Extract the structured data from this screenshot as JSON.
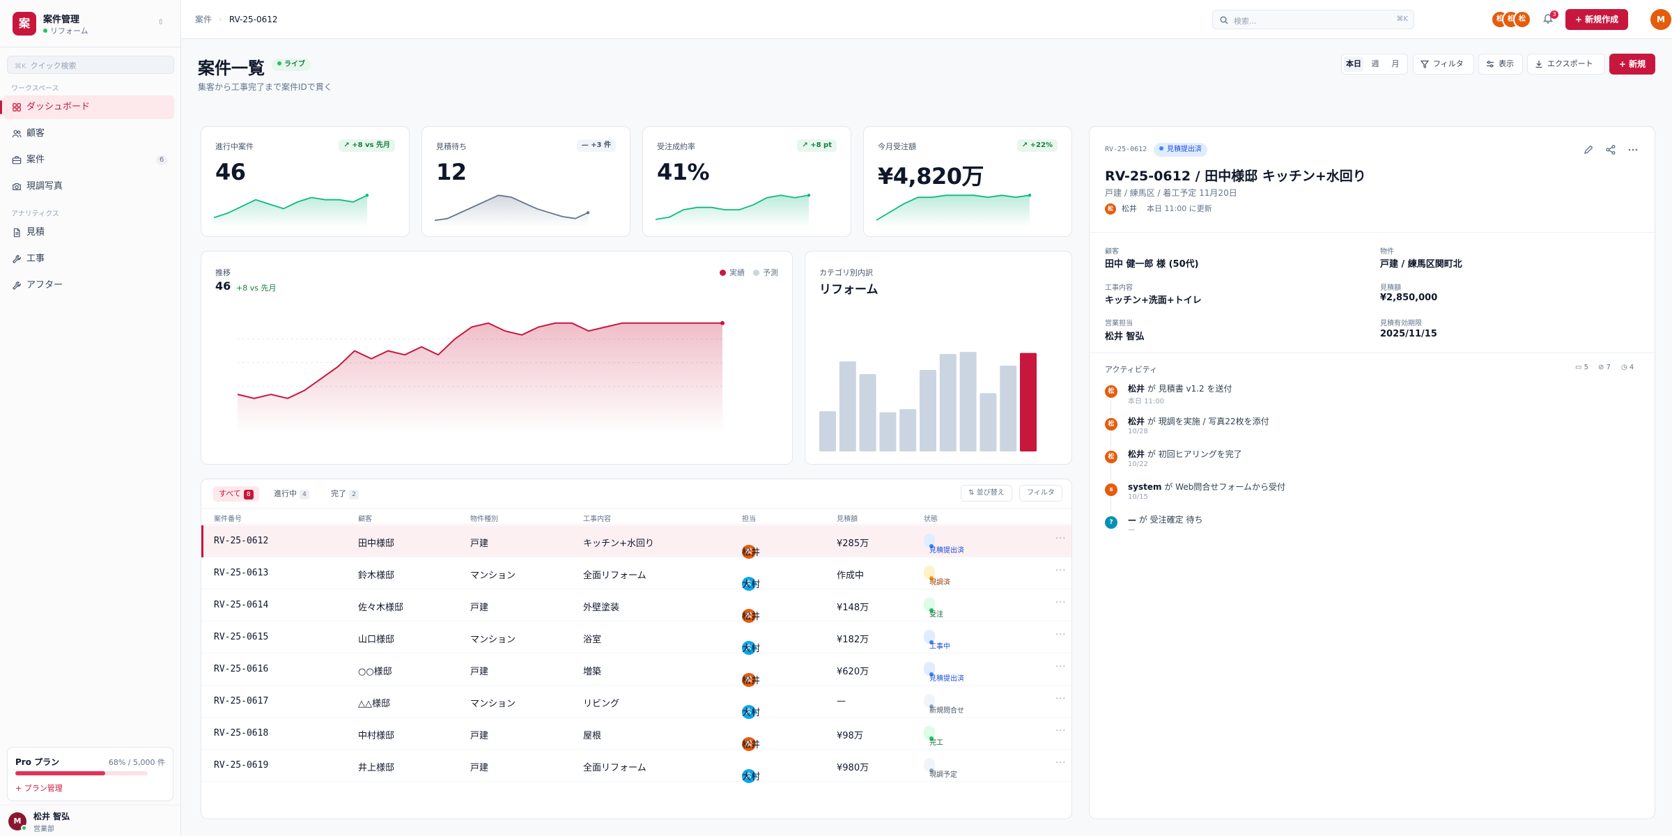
{
  "app": {
    "name": "案件管理",
    "sub": "リフォーム",
    "logo_char": "案"
  },
  "sidebar": {
    "quick_search": {
      "kbd": "⌘K",
      "placeholder": "クイック検索"
    },
    "section_workspace": "ワークスペース",
    "section_analytics": "アナリティクス",
    "items": [
      {
        "label": "ダッシュボード",
        "icon": "grid-icon",
        "active": true
      },
      {
        "label": "顧客",
        "icon": "users-icon"
      },
      {
        "label": "案件",
        "icon": "briefcase-icon",
        "count": "6"
      },
      {
        "label": "現調写真",
        "icon": "camera-icon"
      },
      {
        "label": "見積",
        "icon": "document-icon"
      },
      {
        "label": "工事",
        "icon": "wrench-icon"
      },
      {
        "label": "アフター",
        "icon": "wrench-icon"
      }
    ],
    "plan": {
      "name": "Pro プラン",
      "usage": "68% / 5,000 件",
      "progress": 0.68,
      "manage": "+ プラン管理"
    },
    "user": {
      "initial": "M",
      "name": "松井 智弘",
      "role": "営業部"
    }
  },
  "topbar": {
    "breadcrumb": [
      "案件",
      "RV-25-0612"
    ],
    "search": {
      "placeholder": "検索...",
      "kbd": "⌘K"
    },
    "avatars": [
      "松",
      "松",
      "松"
    ],
    "notification_count": "3",
    "new_button": "+ 新規作成",
    "user_initial": "M"
  },
  "page": {
    "title": "案件一覧",
    "live": "ライブ",
    "subtitle": "集客から工事完了まで案件IDで貫く",
    "range": [
      "本日",
      "週",
      "月"
    ],
    "filter": "フィルタ",
    "view": "表示",
    "export": "エクスポート",
    "new": "+ 新規"
  },
  "kpis": [
    {
      "label": "進行中案件",
      "value": "46",
      "badge": "↗ +8 vs 先月",
      "trend": "up",
      "color": "#10b981",
      "spark": [
        3,
        5,
        8,
        11,
        9,
        7,
        10,
        12,
        11,
        11,
        10,
        13
      ]
    },
    {
      "label": "見積待ち",
      "value": "12",
      "badge": "— +3 件",
      "trend": "neutral",
      "color": "#64748b",
      "spark": [
        2,
        3,
        6,
        9,
        12,
        15,
        14,
        11,
        8,
        6,
        4,
        3,
        6
      ]
    },
    {
      "label": "受注成約率",
      "value": "41%",
      "badge": "↗ +8 pt",
      "trend": "up",
      "color": "#10b981",
      "spark": [
        2,
        3,
        6,
        7,
        7,
        6,
        6,
        8,
        11,
        12,
        11,
        12
      ]
    },
    {
      "label": "今月受注額",
      "value": "¥4,820万",
      "badge": "↗ +22%",
      "trend": "up",
      "color": "#10b981",
      "spark": [
        2,
        6,
        10,
        13,
        13,
        14,
        14,
        14,
        13,
        14,
        13,
        14
      ]
    }
  ],
  "trend": {
    "label": "推移",
    "value": "46",
    "delta": "+8 vs 先月",
    "legend": [
      {
        "name": "実績",
        "color": "#c8173d"
      },
      {
        "name": "予測",
        "color": "#cbd5e1"
      }
    ]
  },
  "category": {
    "label": "カテゴリ別内訳",
    "value": "リフォーム"
  },
  "chart_data": [
    {
      "type": "line",
      "values": [
        10,
        9,
        10,
        9,
        11,
        14,
        17,
        21,
        19,
        21,
        20,
        22,
        20,
        24,
        27,
        28,
        26,
        25,
        27,
        28,
        28,
        26,
        27,
        28,
        28,
        28,
        28,
        28,
        28,
        28
      ],
      "color": "#c8173d",
      "grid": true
    },
    {
      "type": "bar",
      "values": [
        38,
        85,
        73,
        37,
        40,
        77,
        92,
        94,
        55,
        81,
        93
      ],
      "highlight_last": true,
      "colors": {
        "default": "#cbd5e1",
        "highlight": "#c8173d"
      }
    }
  ],
  "table": {
    "tabs": [
      {
        "label": "すべて",
        "count": "8",
        "active": true
      },
      {
        "label": "進行中",
        "count": "4"
      },
      {
        "label": "完了",
        "count": "2"
      }
    ],
    "sort": "⇅ 並び替え",
    "filter": "フィルタ",
    "columns": [
      "案件番号",
      "顧客",
      "物件種別",
      "工事内容",
      "担当",
      "見積額",
      "状態"
    ],
    "rows": [
      {
        "id": "RV-25-0612",
        "customer": "田中様邸",
        "type": "戸建",
        "work": "キッチン+水回り",
        "rep_initial": "松",
        "rep": "松井",
        "rep_color": "#e45c0c",
        "amount": "¥285万",
        "status": "見積提出済",
        "status_bg": "#e0edff",
        "status_fg": "#1d4ed8",
        "status_dot": "#3b82f6",
        "selected": true
      },
      {
        "id": "RV-25-0613",
        "customer": "鈴木様邸",
        "type": "マンション",
        "work": "全面リフォーム",
        "rep_initial": "大",
        "rep": "大村",
        "rep_color": "#0ea5e9",
        "amount": "作成中",
        "status": "現調済",
        "status_bg": "#fef3c7",
        "status_fg": "#92400e",
        "status_dot": "#f59e0b"
      },
      {
        "id": "RV-25-0614",
        "customer": "佐々木様邸",
        "type": "戸建",
        "work": "外壁塗装",
        "rep_initial": "松",
        "rep": "松井",
        "rep_color": "#e45c0c",
        "amount": "¥148万",
        "status": "受注",
        "status_bg": "#dcfce7",
        "status_fg": "#166534",
        "status_dot": "#22c55e"
      },
      {
        "id": "RV-25-0615",
        "customer": "山口様邸",
        "type": "マンション",
        "work": "浴室",
        "rep_initial": "大",
        "rep": "大村",
        "rep_color": "#0ea5e9",
        "amount": "¥182万",
        "status": "工事中",
        "status_bg": "#e0edff",
        "status_fg": "#1d4ed8",
        "status_dot": "#3b82f6"
      },
      {
        "id": "RV-25-0616",
        "customer": "○○様邸",
        "type": "戸建",
        "work": "増築",
        "rep_initial": "松",
        "rep": "松井",
        "rep_color": "#e45c0c",
        "amount": "¥620万",
        "status": "見積提出済",
        "status_bg": "#e0edff",
        "status_fg": "#1d4ed8",
        "status_dot": "#3b82f6"
      },
      {
        "id": "RV-25-0617",
        "customer": "△△様邸",
        "type": "マンション",
        "work": "リビング",
        "rep_initial": "大",
        "rep": "大村",
        "rep_color": "#0ea5e9",
        "amount": "—",
        "status": "新規問合せ",
        "status_bg": "#f1f5f9",
        "status_fg": "#475569",
        "status_dot": "#94a3b8"
      },
      {
        "id": "RV-25-0618",
        "customer": "中村様邸",
        "type": "戸建",
        "work": "屋根",
        "rep_initial": "松",
        "rep": "松井",
        "rep_color": "#e45c0c",
        "amount": "¥98万",
        "status": "完工",
        "status_bg": "#dcfce7",
        "status_fg": "#166534",
        "status_dot": "#22c55e"
      },
      {
        "id": "RV-25-0619",
        "customer": "井上様邸",
        "type": "戸建",
        "work": "全面リフォーム",
        "rep_initial": "大",
        "rep": "大村",
        "rep_color": "#0ea5e9",
        "amount": "¥980万",
        "status": "現調予定",
        "status_bg": "#f1f5f9",
        "status_fg": "#475569",
        "status_dot": "#94a3b8"
      }
    ]
  },
  "detail": {
    "id": "RV-25-0612",
    "status": "見積提出済",
    "title": "RV-25-0612 / 田中様邸 キッチン+水回り",
    "subtitle": "戸建 / 練馬区 / 着工予定 11月20日",
    "owner_initial": "松",
    "owner": "松井",
    "updated": "本日 11:00 に更新",
    "fields": [
      {
        "label": "顧客",
        "value": "田中 健一郎 様 (50代)"
      },
      {
        "label": "物件",
        "value": "戸建 / 練馬区関町北"
      },
      {
        "label": "工事内容",
        "value": "キッチン+洗面+トイレ"
      },
      {
        "label": "見積額",
        "value": "¥2,850,000"
      },
      {
        "label": "営業担当",
        "value": "松井 智弘"
      },
      {
        "label": "見積有効期限",
        "value": "2025/11/15"
      }
    ],
    "activity_title": "アクティビティ",
    "counts": {
      "comments": "5",
      "attachments": "7",
      "tasks": "4"
    },
    "activity": [
      {
        "initial": "松",
        "color": "#e45c0c",
        "actor": "松井",
        "joiner": "が",
        "text": "見積書 v1.2 を送付",
        "time": "本日 11:00"
      },
      {
        "initial": "松",
        "color": "#e45c0c",
        "actor": "松井",
        "joiner": "が",
        "text": "現調を実施 / 写真22枚を添付",
        "time": "10/28"
      },
      {
        "initial": "松",
        "color": "#e45c0c",
        "actor": "松井",
        "joiner": "が",
        "text": "初回ヒアリングを完了",
        "time": "10/22"
      },
      {
        "initial": "s",
        "color": "#e45c0c",
        "actor": "system",
        "joiner": "が",
        "text": "Web問合せフォームから受付",
        "time": "10/15"
      },
      {
        "initial": "?",
        "color": "#0891b2",
        "actor": "—",
        "joiner": "が",
        "text": "受注確定 待ち",
        "time": "—"
      }
    ]
  }
}
